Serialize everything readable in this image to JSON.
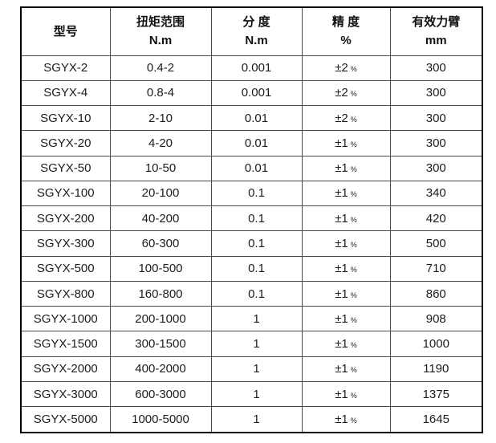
{
  "table": {
    "text_color": "#1c1c1c",
    "grid_color": "#4a4a4a",
    "outer_border_color": "#000000",
    "columns": [
      {
        "title": "型号",
        "unit": ""
      },
      {
        "title": "扭矩范围",
        "unit": "N.m"
      },
      {
        "title": "分 度",
        "unit": "N.m"
      },
      {
        "title": "精 度",
        "unit": "%"
      },
      {
        "title": "有效力臂",
        "unit": "mm"
      }
    ],
    "accuracy_unit": "%",
    "rows": [
      {
        "model": "SGYX-2",
        "torque_range": "0.4-2",
        "division": "0.001",
        "accuracy": "±2",
        "arm": "300"
      },
      {
        "model": "SGYX-4",
        "torque_range": "0.8-4",
        "division": "0.001",
        "accuracy": "±2",
        "arm": "300"
      },
      {
        "model": "SGYX-10",
        "torque_range": "2-10",
        "division": "0.01",
        "accuracy": "±2",
        "arm": "300"
      },
      {
        "model": "SGYX-20",
        "torque_range": "4-20",
        "division": "0.01",
        "accuracy": "±1",
        "arm": "300"
      },
      {
        "model": "SGYX-50",
        "torque_range": "10-50",
        "division": "0.01",
        "accuracy": "±1",
        "arm": "300"
      },
      {
        "model": "SGYX-100",
        "torque_range": "20-100",
        "division": "0.1",
        "accuracy": "±1",
        "arm": "340"
      },
      {
        "model": "SGYX-200",
        "torque_range": "40-200",
        "division": "0.1",
        "accuracy": "±1",
        "arm": "420"
      },
      {
        "model": "SGYX-300",
        "torque_range": "60-300",
        "division": "0.1",
        "accuracy": "±1",
        "arm": "500"
      },
      {
        "model": "SGYX-500",
        "torque_range": "100-500",
        "division": "0.1",
        "accuracy": "±1",
        "arm": "710"
      },
      {
        "model": "SGYX-800",
        "torque_range": "160-800",
        "division": "0.1",
        "accuracy": "±1",
        "arm": "860"
      },
      {
        "model": "SGYX-1000",
        "torque_range": "200-1000",
        "division": "1",
        "accuracy": "±1",
        "arm": "908"
      },
      {
        "model": "SGYX-1500",
        "torque_range": "300-1500",
        "division": "1",
        "accuracy": "±1",
        "arm": "1000"
      },
      {
        "model": "SGYX-2000",
        "torque_range": "400-2000",
        "division": "1",
        "accuracy": "±1",
        "arm": "1190"
      },
      {
        "model": "SGYX-3000",
        "torque_range": "600-3000",
        "division": "1",
        "accuracy": "±1",
        "arm": "1375"
      },
      {
        "model": "SGYX-5000",
        "torque_range": "1000-5000",
        "division": "1",
        "accuracy": "±1",
        "arm": "1645"
      }
    ]
  }
}
